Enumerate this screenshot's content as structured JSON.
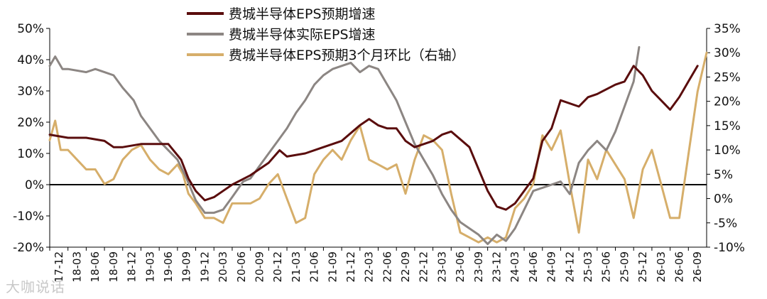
{
  "chart_data": {
    "type": "line",
    "left_axis": {
      "ticks": [
        "50%",
        "40%",
        "30%",
        "20%",
        "10%",
        "0%",
        "-10%",
        "-20%"
      ],
      "min": -20,
      "max": 50
    },
    "right_axis": {
      "ticks": [
        "35%",
        "30%",
        "25%",
        "20%",
        "15%",
        "10%",
        "5%",
        "0%",
        "-5%",
        "-10%"
      ],
      "min": -10,
      "max": 35
    },
    "x_categories": [
      "17-12",
      "18-03",
      "18-06",
      "18-09",
      "18-12",
      "19-03",
      "19-06",
      "19-09",
      "19-12",
      "20-03",
      "20-06",
      "20-09",
      "20-12",
      "21-03",
      "21-06",
      "21-09",
      "21-12",
      "22-03",
      "22-06",
      "22-09",
      "22-12",
      "23-03",
      "23-06",
      "23-09",
      "23-12",
      "24-03",
      "24-06",
      "24-09",
      "24-12",
      "25-03",
      "25-06",
      "25-09",
      "25-12",
      "26-03",
      "26-06",
      "26-09"
    ],
    "legend_position": "top-center",
    "series": [
      {
        "name": "费城半导体EPS预期增速",
        "axis": "left",
        "color": "#5a0d0d",
        "points": [
          [
            0,
            16
          ],
          [
            1,
            15
          ],
          [
            2,
            15
          ],
          [
            3,
            14
          ],
          [
            3.5,
            12
          ],
          [
            4,
            12
          ],
          [
            5,
            13
          ],
          [
            5.8,
            13
          ],
          [
            6.5,
            13
          ],
          [
            7.2,
            8
          ],
          [
            7.6,
            2
          ],
          [
            8,
            -2
          ],
          [
            8.5,
            -5
          ],
          [
            9,
            -4
          ],
          [
            9.5,
            -2
          ],
          [
            10,
            0
          ],
          [
            11,
            3
          ],
          [
            12,
            7
          ],
          [
            12.6,
            11
          ],
          [
            13,
            9
          ],
          [
            14,
            10
          ],
          [
            15,
            12
          ],
          [
            16,
            14
          ],
          [
            16.6,
            17
          ],
          [
            17,
            19
          ],
          [
            17.5,
            21
          ],
          [
            18,
            19
          ],
          [
            18.5,
            18
          ],
          [
            19,
            18
          ],
          [
            19.5,
            14
          ],
          [
            20,
            12
          ],
          [
            21,
            14
          ],
          [
            21.5,
            16
          ],
          [
            22,
            17
          ],
          [
            23,
            12
          ],
          [
            23.5,
            5
          ],
          [
            24,
            -2
          ],
          [
            24.5,
            -7
          ],
          [
            25,
            -8
          ],
          [
            25.5,
            -6
          ],
          [
            26,
            -2
          ],
          [
            26.5,
            2
          ],
          [
            27,
            14
          ],
          [
            27.5,
            18
          ],
          [
            28,
            27
          ],
          [
            29,
            25
          ],
          [
            29.5,
            28
          ],
          [
            30,
            29
          ],
          [
            31,
            32
          ],
          [
            31.5,
            33
          ],
          [
            32,
            38
          ],
          [
            32.5,
            35
          ],
          [
            33,
            30
          ],
          [
            33.5,
            27
          ],
          [
            34,
            24
          ],
          [
            34.5,
            28
          ],
          [
            35,
            33
          ],
          [
            35.5,
            38
          ]
        ]
      },
      {
        "name": "费城半导体实际EPS增速",
        "axis": "left",
        "color": "#8c8683",
        "points": [
          [
            0,
            38
          ],
          [
            0.3,
            41
          ],
          [
            0.7,
            37
          ],
          [
            1,
            37
          ],
          [
            2,
            36
          ],
          [
            2.5,
            37
          ],
          [
            3,
            36
          ],
          [
            3.5,
            35
          ],
          [
            4,
            31
          ],
          [
            4.6,
            27
          ],
          [
            5,
            22
          ],
          [
            5.5,
            18
          ],
          [
            6,
            14
          ],
          [
            7,
            8
          ],
          [
            7.5,
            2
          ],
          [
            8,
            -5
          ],
          [
            8.5,
            -9
          ],
          [
            9,
            -9
          ],
          [
            9.5,
            -8
          ],
          [
            10,
            -4
          ],
          [
            10.6,
            1
          ],
          [
            11,
            2
          ],
          [
            12,
            10
          ],
          [
            12.5,
            14
          ],
          [
            13,
            18
          ],
          [
            13.5,
            23
          ],
          [
            14,
            27
          ],
          [
            14.5,
            32
          ],
          [
            15,
            35
          ],
          [
            15.5,
            37
          ],
          [
            16,
            38
          ],
          [
            16.5,
            39
          ],
          [
            17,
            36
          ],
          [
            17.5,
            38
          ],
          [
            18,
            37
          ],
          [
            18.5,
            32
          ],
          [
            19,
            27
          ],
          [
            19.5,
            20
          ],
          [
            20,
            13
          ],
          [
            20.5,
            8
          ],
          [
            21,
            3
          ],
          [
            21.5,
            -3
          ],
          [
            22,
            -8
          ],
          [
            22.5,
            -12
          ],
          [
            23,
            -14
          ],
          [
            23.5,
            -16
          ],
          [
            24,
            -19
          ],
          [
            24.5,
            -16
          ],
          [
            25,
            -18
          ],
          [
            25.5,
            -14
          ],
          [
            26,
            -8
          ],
          [
            26.5,
            -2
          ],
          [
            27,
            -1
          ],
          [
            28,
            1
          ],
          [
            28.5,
            -3
          ],
          [
            29,
            7
          ],
          [
            29.5,
            11
          ],
          [
            30,
            14
          ],
          [
            30.5,
            11
          ],
          [
            31,
            17
          ],
          [
            31.5,
            25
          ],
          [
            32,
            33
          ],
          [
            32.3,
            44
          ]
        ]
      },
      {
        "name": "费城半导体EPS预期3个月环比（右轴）",
        "axis": "right",
        "color": "#d6ae6a",
        "points": [
          [
            0,
            12
          ],
          [
            0.3,
            16
          ],
          [
            0.6,
            10
          ],
          [
            1,
            10
          ],
          [
            1.5,
            8
          ],
          [
            2,
            6
          ],
          [
            2.5,
            6
          ],
          [
            3,
            3
          ],
          [
            3.5,
            4
          ],
          [
            4,
            8
          ],
          [
            4.5,
            10
          ],
          [
            5,
            11
          ],
          [
            5.5,
            8
          ],
          [
            6,
            6
          ],
          [
            6.5,
            5
          ],
          [
            7,
            7
          ],
          [
            7.3,
            5
          ],
          [
            7.6,
            1
          ],
          [
            8,
            -1
          ],
          [
            8.5,
            -4
          ],
          [
            9,
            -4
          ],
          [
            9.5,
            -5
          ],
          [
            10,
            -1
          ],
          [
            10.5,
            -1
          ],
          [
            11,
            -1
          ],
          [
            11.5,
            0
          ],
          [
            12,
            3
          ],
          [
            12.5,
            5
          ],
          [
            13,
            0
          ],
          [
            13.5,
            -5
          ],
          [
            14,
            -4
          ],
          [
            14.5,
            5
          ],
          [
            15,
            8
          ],
          [
            15.5,
            10
          ],
          [
            16,
            8
          ],
          [
            16.5,
            12
          ],
          [
            17,
            15
          ],
          [
            17.5,
            8
          ],
          [
            18,
            7
          ],
          [
            18.5,
            6
          ],
          [
            19,
            7
          ],
          [
            19.5,
            1
          ],
          [
            20,
            8
          ],
          [
            20.5,
            13
          ],
          [
            21,
            12
          ],
          [
            21.5,
            10
          ],
          [
            22,
            1
          ],
          [
            22.5,
            -7
          ],
          [
            23,
            -8
          ],
          [
            23.5,
            -9
          ],
          [
            24,
            -8
          ],
          [
            24.5,
            -9
          ],
          [
            25,
            -8
          ],
          [
            25.5,
            -2
          ],
          [
            26,
            0
          ],
          [
            26.5,
            3
          ],
          [
            27,
            13
          ],
          [
            27.5,
            10
          ],
          [
            28,
            14
          ],
          [
            28.5,
            3
          ],
          [
            29,
            -7
          ],
          [
            29.5,
            8
          ],
          [
            30,
            4
          ],
          [
            30.5,
            10
          ],
          [
            31,
            7
          ],
          [
            31.5,
            4
          ],
          [
            32,
            -4
          ],
          [
            32.5,
            6
          ],
          [
            33,
            10
          ],
          [
            33.5,
            3
          ],
          [
            34,
            -4
          ],
          [
            34.5,
            -4
          ],
          [
            35,
            9
          ],
          [
            35.5,
            22
          ],
          [
            36,
            30
          ]
        ]
      }
    ]
  },
  "watermark": "大咖说话"
}
